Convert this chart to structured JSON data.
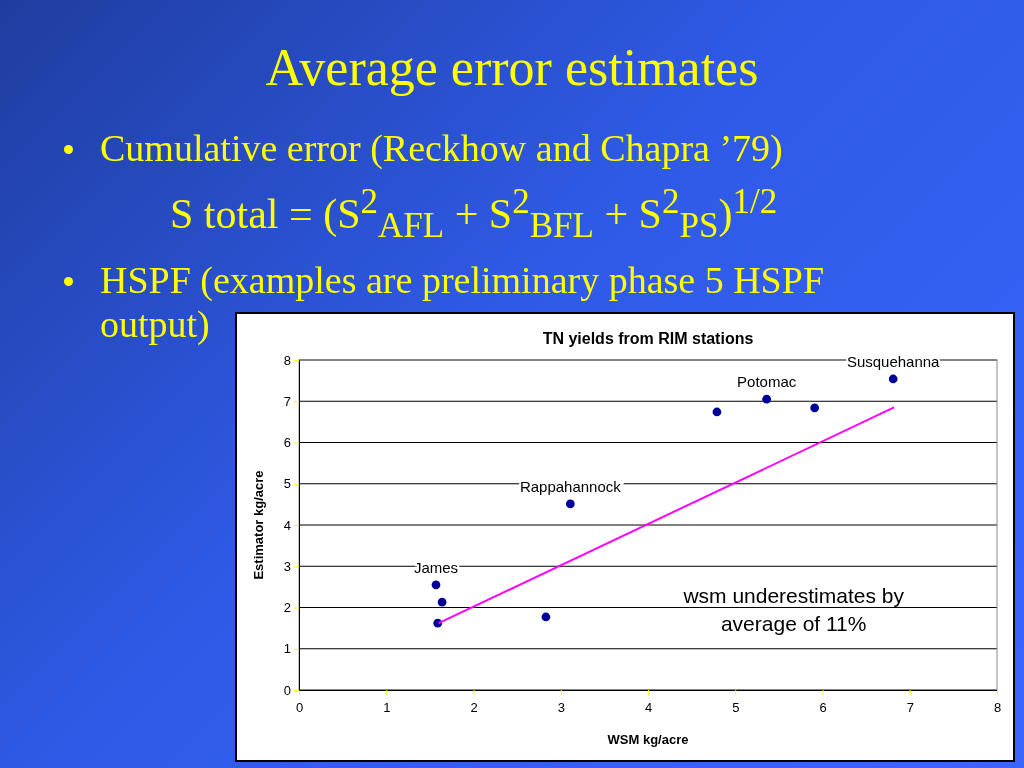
{
  "chart_data": {
    "type": "scatter",
    "title": "Average error estimates",
    "subtitle": "TN yields from RIM stations",
    "xlabel": "WSM kg/acre",
    "ylabel": "Estimator kg/acre",
    "annotations": [
      "Cumulative error (Reckhow and Chapra ’79)",
      "S total = (S$^{2}$$_{AFL}$ + S$^{2}$$_{BFL}$ + S$^{2}$$_{PS}$)$^{1/2}$",
      "HSPF (examples are preliminary phase 5 HSPF output)",
      "wsm underestimates by average of 11%",
      {
        "text": "James",
        "x": 1.57,
        "y": 2.55
      },
      {
        "text": "Rappahannock",
        "x": 3.11,
        "y": 4.51
      },
      {
        "text": "Potomac",
        "x": 5.36,
        "y": 7.05
      },
      {
        "text": "Susquehanna",
        "x": 6.81,
        "y": 7.54
      }
    ],
    "series": [
      {
        "color": "#000099",
        "x": [
          1.57,
          1.64,
          1.59,
          2.83,
          3.11,
          4.79,
          5.36,
          5.91,
          6.81
        ],
        "values": [
          2.55,
          2.13,
          1.62,
          1.77,
          4.51,
          6.74,
          7.05,
          6.84,
          7.54
        ]
      },
      {
        "type": "line",
        "color": "#ff00ff",
        "marker": "none",
        "x": [
          1.6,
          6.82
        ],
        "values": [
          1.62,
          6.85
        ]
      }
    ],
    "marker": "circle",
    "xlim": [
      0,
      8
    ],
    "ylim": [
      0,
      8
    ],
    "xticks": [
      0,
      1,
      2,
      3,
      4,
      5,
      6,
      7,
      8
    ],
    "yticks": [
      0,
      1,
      2,
      3,
      4,
      5,
      6,
      7,
      8
    ],
    "grid": "y"
  }
}
